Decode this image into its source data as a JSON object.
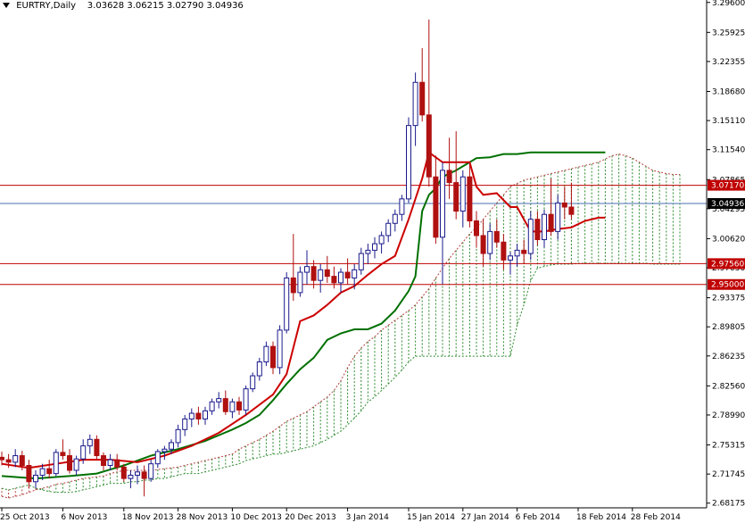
{
  "header": {
    "symbol_label": "EURTRY,Daily",
    "open": "3.03628",
    "high": "3.06215",
    "low": "3.02790",
    "close": "3.04936"
  },
  "colors": {
    "bull_candle": "#1a1a8c",
    "bear_candle": "#b01010",
    "tenkan": "#cc0000",
    "kijun": "#007000",
    "kumo_bull": "#2d8a2d",
    "kumo_bear": "#b44040",
    "level_line": "#c00000",
    "current_price_line": "#4a6fb0",
    "label_bg": "#c00000",
    "current_label_bg": "#000000"
  },
  "chart_data": {
    "type": "candlestick",
    "y_axis": {
      "ticks": [
        3.296,
        3.25925,
        3.22355,
        3.1868,
        3.1511,
        3.1154,
        3.07865,
        3.04295,
        3.0062,
        2.9705,
        2.93375,
        2.89805,
        2.86235,
        2.8256,
        2.7899,
        2.75315,
        2.71745,
        2.68175
      ],
      "tick_labels": [
        "3.29600",
        "3.25925",
        "3.22355",
        "3.18680",
        "3.15110",
        "3.11540",
        "3.07865",
        "3.04295",
        "3.00620",
        "2.97050",
        "2.93375",
        "2.89805",
        "2.86235",
        "2.82560",
        "2.78990",
        "2.75315",
        "2.71745",
        "2.68175"
      ],
      "ylim": [
        2.676,
        3.299
      ]
    },
    "x_axis": {
      "labels": [
        {
          "index": 0,
          "text": "25 Oct 2013"
        },
        {
          "index": 9,
          "text": "6 Nov 2013"
        },
        {
          "index": 18,
          "text": "18 Nov 2013"
        },
        {
          "index": 26,
          "text": "28 Nov 2013"
        },
        {
          "index": 34,
          "text": "10 Dec 2013"
        },
        {
          "index": 42,
          "text": "20 Dec 2013"
        },
        {
          "index": 51,
          "text": "3 Jan 2014"
        },
        {
          "index": 60,
          "text": "15 Jan 2014"
        },
        {
          "index": 68,
          "text": "27 Jan 2014"
        },
        {
          "index": 76,
          "text": "6 Feb 2014"
        },
        {
          "index": 85,
          "text": "18 Feb 2014"
        },
        {
          "index": 93,
          "text": "28 Feb 2014"
        }
      ]
    },
    "horizontal_levels": [
      {
        "value": 3.0717,
        "label": "3.07170"
      },
      {
        "value": 2.9756,
        "label": "2.97560"
      },
      {
        "value": 2.95,
        "label": "2.95000"
      }
    ],
    "current_price": {
      "value": 3.04936,
      "label": "3.04936"
    },
    "candles": [
      [
        2.738,
        2.745,
        2.728,
        2.735
      ],
      [
        2.735,
        2.742,
        2.725,
        2.732
      ],
      [
        2.732,
        2.748,
        2.726,
        2.74
      ],
      [
        2.74,
        2.746,
        2.722,
        2.728
      ],
      [
        2.728,
        2.735,
        2.7,
        2.708
      ],
      [
        2.708,
        2.722,
        2.7,
        2.716
      ],
      [
        2.716,
        2.73,
        2.71,
        2.724
      ],
      [
        2.724,
        2.735,
        2.712,
        2.718
      ],
      [
        2.718,
        2.748,
        2.715,
        2.744
      ],
      [
        2.744,
        2.76,
        2.735,
        2.74
      ],
      [
        2.74,
        2.748,
        2.718,
        2.722
      ],
      [
        2.722,
        2.74,
        2.716,
        2.736
      ],
      [
        2.736,
        2.76,
        2.73,
        2.752
      ],
      [
        2.752,
        2.766,
        2.742,
        2.76
      ],
      [
        2.76,
        2.765,
        2.735,
        2.74
      ],
      [
        2.74,
        2.744,
        2.722,
        2.728
      ],
      [
        2.728,
        2.742,
        2.722,
        2.735
      ],
      [
        2.735,
        2.742,
        2.722,
        2.726
      ],
      [
        2.726,
        2.73,
        2.708,
        2.712
      ],
      [
        2.712,
        2.722,
        2.7,
        2.716
      ],
      [
        2.716,
        2.728,
        2.705,
        2.72
      ],
      [
        2.72,
        2.728,
        2.69,
        2.712
      ],
      [
        2.712,
        2.735,
        2.708,
        2.73
      ],
      [
        2.73,
        2.748,
        2.725,
        2.745
      ],
      [
        2.745,
        2.752,
        2.735,
        2.748
      ],
      [
        2.748,
        2.76,
        2.742,
        2.756
      ],
      [
        2.756,
        2.778,
        2.75,
        2.772
      ],
      [
        2.772,
        2.79,
        2.764,
        2.785
      ],
      [
        2.785,
        2.798,
        2.775,
        2.792
      ],
      [
        2.792,
        2.8,
        2.778,
        2.785
      ],
      [
        2.785,
        2.8,
        2.778,
        2.795
      ],
      [
        2.795,
        2.81,
        2.79,
        2.806
      ],
      [
        2.806,
        2.818,
        2.798,
        2.81
      ],
      [
        2.81,
        2.82,
        2.79,
        2.794
      ],
      [
        2.794,
        2.81,
        2.786,
        2.806
      ],
      [
        2.806,
        2.812,
        2.79,
        2.796
      ],
      [
        2.796,
        2.826,
        2.79,
        2.822
      ],
      [
        2.822,
        2.842,
        2.818,
        2.838
      ],
      [
        2.838,
        2.86,
        2.832,
        2.855
      ],
      [
        2.855,
        2.88,
        2.85,
        2.874
      ],
      [
        2.874,
        2.88,
        2.84,
        2.848
      ],
      [
        2.848,
        2.9,
        2.84,
        2.894
      ],
      [
        2.894,
        2.965,
        2.89,
        2.958
      ],
      [
        2.958,
        3.012,
        2.93,
        2.94
      ],
      [
        2.94,
        2.972,
        2.935,
        2.965
      ],
      [
        2.965,
        2.992,
        2.95,
        2.972
      ],
      [
        2.972,
        2.98,
        2.945,
        2.955
      ],
      [
        2.955,
        2.975,
        2.94,
        2.968
      ],
      [
        2.968,
        2.985,
        2.952,
        2.96
      ],
      [
        2.96,
        2.972,
        2.945,
        2.952
      ],
      [
        2.952,
        2.97,
        2.94,
        2.965
      ],
      [
        2.965,
        2.982,
        2.95,
        2.958
      ],
      [
        2.958,
        2.975,
        2.944,
        2.968
      ],
      [
        2.968,
        2.995,
        2.962,
        2.988
      ],
      [
        2.988,
        3.0,
        2.975,
        2.992
      ],
      [
        2.992,
        3.008,
        2.982,
        3.0
      ],
      [
        3.0,
        3.015,
        2.988,
        3.01
      ],
      [
        3.01,
        3.03,
        3.002,
        3.025
      ],
      [
        3.025,
        3.042,
        3.015,
        3.036
      ],
      [
        3.036,
        3.06,
        3.028,
        3.055
      ],
      [
        3.055,
        3.155,
        3.05,
        3.145
      ],
      [
        3.145,
        3.21,
        3.12,
        3.198
      ],
      [
        3.198,
        3.24,
        3.15,
        3.158
      ],
      [
        3.158,
        3.275,
        3.07,
        3.082
      ],
      [
        3.082,
        3.108,
        3.0,
        3.008
      ],
      [
        3.008,
        3.1,
        2.95,
        3.09
      ],
      [
        3.09,
        3.13,
        3.055,
        3.075
      ],
      [
        3.075,
        3.138,
        3.03,
        3.04
      ],
      [
        3.04,
        3.09,
        3.02,
        3.082
      ],
      [
        3.082,
        3.1,
        3.02,
        3.028
      ],
      [
        3.028,
        3.04,
        2.995,
        3.01
      ],
      [
        3.01,
        3.03,
        2.972,
        2.988
      ],
      [
        2.988,
        3.025,
        2.98,
        3.015
      ],
      [
        3.015,
        3.03,
        2.995,
        3.002
      ],
      [
        3.002,
        3.012,
        2.968,
        2.98
      ],
      [
        2.98,
        2.99,
        2.962,
        2.985
      ],
      [
        2.985,
        3.0,
        2.972,
        2.992
      ],
      [
        2.992,
        3.005,
        2.975,
        2.988
      ],
      [
        2.988,
        3.04,
        2.98,
        3.03
      ],
      [
        3.03,
        3.04,
        2.998,
        3.005
      ],
      [
        3.005,
        3.042,
        2.995,
        3.036
      ],
      [
        3.036,
        3.08,
        3.01,
        3.015
      ],
      [
        3.015,
        3.06,
        3.005,
        3.05
      ],
      [
        3.05,
        3.07,
        3.03,
        3.045
      ],
      [
        3.045,
        3.075,
        3.03,
        3.036
      ]
    ],
    "tenkan": [
      [
        0,
        2.73
      ],
      [
        4,
        2.725
      ],
      [
        8,
        2.73
      ],
      [
        12,
        2.735
      ],
      [
        16,
        2.735
      ],
      [
        20,
        2.732
      ],
      [
        24,
        2.74
      ],
      [
        28,
        2.752
      ],
      [
        32,
        2.768
      ],
      [
        36,
        2.79
      ],
      [
        40,
        2.815
      ],
      [
        42,
        2.84
      ],
      [
        44,
        2.905
      ],
      [
        46,
        2.912
      ],
      [
        48,
        2.925
      ],
      [
        50,
        2.94
      ],
      [
        52,
        2.948
      ],
      [
        54,
        2.962
      ],
      [
        56,
        2.975
      ],
      [
        58,
        2.985
      ],
      [
        60,
        3.03
      ],
      [
        62,
        3.08
      ],
      [
        63,
        3.112
      ],
      [
        65,
        3.1
      ],
      [
        66,
        3.1
      ],
      [
        69,
        3.1
      ],
      [
        70,
        3.07
      ],
      [
        71,
        3.06
      ],
      [
        73,
        3.062
      ],
      [
        75,
        3.045
      ],
      [
        76,
        3.045
      ],
      [
        78,
        3.015
      ],
      [
        80,
        3.015
      ],
      [
        82,
        3.018
      ],
      [
        84,
        3.02
      ],
      [
        86,
        3.028
      ],
      [
        88,
        3.032
      ],
      [
        89,
        3.032
      ]
    ],
    "kijun": [
      [
        0,
        2.715
      ],
      [
        5,
        2.712
      ],
      [
        10,
        2.715
      ],
      [
        14,
        2.718
      ],
      [
        18,
        2.728
      ],
      [
        22,
        2.74
      ],
      [
        26,
        2.748
      ],
      [
        30,
        2.758
      ],
      [
        34,
        2.772
      ],
      [
        36,
        2.78
      ],
      [
        38,
        2.79
      ],
      [
        40,
        2.808
      ],
      [
        42,
        2.828
      ],
      [
        44,
        2.846
      ],
      [
        46,
        2.86
      ],
      [
        48,
        2.882
      ],
      [
        50,
        2.89
      ],
      [
        52,
        2.895
      ],
      [
        54,
        2.895
      ],
      [
        56,
        2.902
      ],
      [
        58,
        2.918
      ],
      [
        60,
        2.942
      ],
      [
        61,
        2.96
      ],
      [
        62,
        3.04
      ],
      [
        63,
        3.06
      ],
      [
        64,
        3.068
      ],
      [
        65,
        3.082
      ],
      [
        67,
        3.09
      ],
      [
        69,
        3.1
      ],
      [
        70,
        3.105
      ],
      [
        72,
        3.106
      ],
      [
        74,
        3.11
      ],
      [
        76,
        3.11
      ],
      [
        78,
        3.112
      ],
      [
        89,
        3.112
      ]
    ],
    "kumo": {
      "start_index": 0,
      "span_a": [
        2.69,
        2.688,
        2.69,
        2.692,
        2.695,
        2.698,
        2.7,
        2.702,
        2.705,
        2.706,
        2.708,
        2.71,
        2.712,
        2.713,
        2.714,
        2.715,
        2.718,
        2.72,
        2.722,
        2.722,
        2.722,
        2.722,
        2.722,
        2.723,
        2.724,
        2.725,
        2.726,
        2.728,
        2.73,
        2.732,
        2.734,
        2.736,
        2.738,
        2.74,
        2.742,
        2.748,
        2.752,
        2.756,
        2.76,
        2.765,
        2.77,
        2.776,
        2.782,
        2.786,
        2.79,
        2.794,
        2.8,
        2.806,
        2.812,
        2.82,
        2.832,
        2.848,
        2.862,
        2.872,
        2.88,
        2.886,
        2.894,
        2.9,
        2.906,
        2.912,
        2.918,
        2.925,
        2.935,
        2.945,
        2.958,
        2.97,
        2.982,
        2.992,
        3.002,
        3.012,
        3.02,
        3.03,
        3.04,
        3.05,
        3.06,
        3.07,
        3.074,
        3.078,
        3.08,
        3.082,
        3.084,
        3.086,
        3.088,
        3.09,
        3.092,
        3.094,
        3.096,
        3.098,
        3.1,
        3.104,
        3.108,
        3.11,
        3.108,
        3.105,
        3.1,
        3.095,
        3.09,
        3.088,
        3.086,
        3.085,
        3.085
      ],
      "span_b": [
        2.7,
        2.698,
        2.7,
        2.702,
        2.704,
        2.7,
        2.698,
        2.696,
        2.695,
        2.695,
        2.695,
        2.696,
        2.698,
        2.7,
        2.702,
        2.704,
        2.706,
        2.706,
        2.706,
        2.708,
        2.708,
        2.71,
        2.71,
        2.712,
        2.712,
        2.714,
        2.716,
        2.718,
        2.718,
        2.718,
        2.72,
        2.722,
        2.724,
        2.726,
        2.728,
        2.73,
        2.734,
        2.736,
        2.738,
        2.74,
        2.742,
        2.742,
        2.744,
        2.746,
        2.748,
        2.75,
        2.752,
        2.756,
        2.76,
        2.765,
        2.77,
        2.778,
        2.786,
        2.795,
        2.806,
        2.812,
        2.82,
        2.828,
        2.836,
        2.845,
        2.855,
        2.862,
        2.862,
        2.862,
        2.862,
        2.862,
        2.862,
        2.862,
        2.862,
        2.862,
        2.862,
        2.862,
        2.862,
        2.862,
        2.862,
        2.862,
        2.9,
        2.925,
        2.955,
        2.97,
        2.972,
        2.974,
        2.975,
        2.975,
        2.975,
        2.976,
        2.976,
        2.976,
        2.976,
        2.976,
        2.976,
        2.976,
        2.976,
        2.976,
        2.976,
        2.976,
        2.975,
        2.975,
        2.975,
        2.975,
        2.975
      ]
    }
  }
}
